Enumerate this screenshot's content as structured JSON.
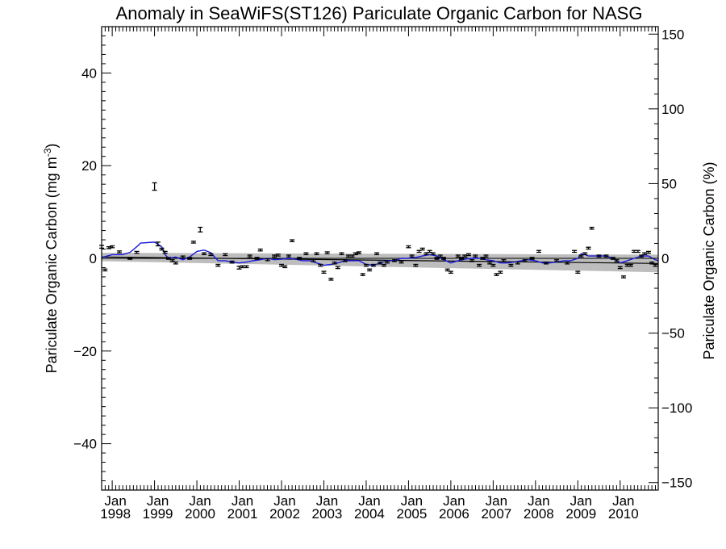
{
  "chart_data": {
    "type": "line",
    "title": "Anomaly in SeaWiFS(ST126) Pariculate Organic Carbon for NASG",
    "ylabel_left_main": "Pariculate Organic Carbon (mg m",
    "ylabel_left_sup": "-3",
    "ylabel_left_close": ")",
    "ylabel_right": "Pariculate Organic Carbon (%)",
    "xlim": [
      1997.75,
      2010.9
    ],
    "ylim_left": [
      -50,
      50
    ],
    "ylim_right": [
      -155,
      155
    ],
    "yticks_left": [
      {
        "value": -40,
        "label": "−40"
      },
      {
        "value": -20,
        "label": "−20"
      },
      {
        "value": 0,
        "label": "0"
      },
      {
        "value": 20,
        "label": "20"
      },
      {
        "value": 40,
        "label": "40"
      }
    ],
    "yticks_right": [
      {
        "value": -150,
        "label": "−150"
      },
      {
        "value": -100,
        "label": "−100"
      },
      {
        "value": -50,
        "label": "−50"
      },
      {
        "value": 0,
        "label": "0"
      },
      {
        "value": 50,
        "label": "50"
      },
      {
        "value": 100,
        "label": "100"
      },
      {
        "value": 150,
        "label": "150"
      }
    ],
    "xticks": [
      {
        "value": 1998.0,
        "month": "Jan",
        "year": "1998"
      },
      {
        "value": 1999.0,
        "month": "Jan",
        "year": "1999"
      },
      {
        "value": 2000.0,
        "month": "Jan",
        "year": "2000"
      },
      {
        "value": 2001.0,
        "month": "Jan",
        "year": "2001"
      },
      {
        "value": 2002.0,
        "month": "Jan",
        "year": "2002"
      },
      {
        "value": 2003.0,
        "month": "Jan",
        "year": "2003"
      },
      {
        "value": 2004.0,
        "month": "Jan",
        "year": "2004"
      },
      {
        "value": 2005.0,
        "month": "Jan",
        "year": "2005"
      },
      {
        "value": 2006.0,
        "month": "Jan",
        "year": "2006"
      },
      {
        "value": 2007.0,
        "month": "Jan",
        "year": "2007"
      },
      {
        "value": 2008.0,
        "month": "Jan",
        "year": "2008"
      },
      {
        "value": 2009.0,
        "month": "Jan",
        "year": "2009"
      },
      {
        "value": 2010.0,
        "month": "Jan",
        "year": "2010"
      }
    ],
    "trend_band": {
      "x": [
        1997.75,
        2010.9
      ],
      "upper": [
        1.2,
        0.8
      ],
      "lower": [
        -0.6,
        -3.0
      ]
    },
    "trend_line": {
      "x": [
        1997.75,
        2010.9
      ],
      "y": [
        0.3,
        -1.1
      ]
    },
    "monthly_anomalies": [
      {
        "x": 1997.75,
        "y": 2.5,
        "err": 0.3
      },
      {
        "x": 1997.83,
        "y": -2.5,
        "err": 0.2
      },
      {
        "x": 1997.92,
        "y": 2.3,
        "err": 0.2
      },
      {
        "x": 1998.0,
        "y": 2.5,
        "err": 0.2
      },
      {
        "x": 1998.17,
        "y": 1.4,
        "err": 0.2
      },
      {
        "x": 1998.42,
        "y": 0.0,
        "err": 0.2
      },
      {
        "x": 1998.58,
        "y": 1.3,
        "err": 0.2
      },
      {
        "x": 1999.0,
        "y": 15.5,
        "err": 0.8
      },
      {
        "x": 1999.08,
        "y": 3.1,
        "err": 0.4
      },
      {
        "x": 1999.17,
        "y": 2.0,
        "err": 0.2
      },
      {
        "x": 1999.25,
        "y": 1.3,
        "err": 0.2
      },
      {
        "x": 1999.33,
        "y": 0.0,
        "err": 0.2
      },
      {
        "x": 1999.42,
        "y": -0.5,
        "err": 0.2
      },
      {
        "x": 1999.5,
        "y": -1.0,
        "err": 0.2
      },
      {
        "x": 1999.67,
        "y": 0.3,
        "err": 0.2
      },
      {
        "x": 1999.83,
        "y": 0.0,
        "err": 0.2
      },
      {
        "x": 1999.92,
        "y": 3.5,
        "err": 0.2
      },
      {
        "x": 2000.08,
        "y": 6.2,
        "err": 0.5
      },
      {
        "x": 2000.17,
        "y": 1.0,
        "err": 0.2
      },
      {
        "x": 2000.33,
        "y": 0.8,
        "err": 0.2
      },
      {
        "x": 2000.5,
        "y": -1.5,
        "err": 0.2
      },
      {
        "x": 2000.67,
        "y": 0.8,
        "err": 0.2
      },
      {
        "x": 2000.83,
        "y": -0.8,
        "err": 0.2
      },
      {
        "x": 2001.0,
        "y": -2.0,
        "err": 0.3
      },
      {
        "x": 2001.08,
        "y": -1.8,
        "err": 0.2
      },
      {
        "x": 2001.17,
        "y": -1.8,
        "err": 0.2
      },
      {
        "x": 2001.25,
        "y": 0.5,
        "err": 0.2
      },
      {
        "x": 2001.42,
        "y": 0.0,
        "err": 0.2
      },
      {
        "x": 2001.5,
        "y": 1.8,
        "err": 0.2
      },
      {
        "x": 2001.67,
        "y": -0.3,
        "err": 0.2
      },
      {
        "x": 2001.83,
        "y": 0.5,
        "err": 0.2
      },
      {
        "x": 2001.92,
        "y": 0.7,
        "err": 0.2
      },
      {
        "x": 2002.0,
        "y": -1.5,
        "err": 0.2
      },
      {
        "x": 2002.08,
        "y": -1.8,
        "err": 0.2
      },
      {
        "x": 2002.17,
        "y": 0.5,
        "err": 0.2
      },
      {
        "x": 2002.25,
        "y": 3.8,
        "err": 0.2
      },
      {
        "x": 2002.42,
        "y": 0.0,
        "err": 0.2
      },
      {
        "x": 2002.58,
        "y": 1.0,
        "err": 0.2
      },
      {
        "x": 2002.75,
        "y": -0.5,
        "err": 0.2
      },
      {
        "x": 2002.83,
        "y": 1.0,
        "err": 0.2
      },
      {
        "x": 2002.92,
        "y": -1.5,
        "err": 0.2
      },
      {
        "x": 2003.0,
        "y": -3.0,
        "err": 0.2
      },
      {
        "x": 2003.08,
        "y": 1.2,
        "err": 0.2
      },
      {
        "x": 2003.17,
        "y": -4.5,
        "err": 0.2
      },
      {
        "x": 2003.25,
        "y": -1.0,
        "err": 0.2
      },
      {
        "x": 2003.33,
        "y": -2.0,
        "err": 0.2
      },
      {
        "x": 2003.42,
        "y": 1.0,
        "err": 0.2
      },
      {
        "x": 2003.5,
        "y": -0.5,
        "err": 0.2
      },
      {
        "x": 2003.58,
        "y": 0.5,
        "err": 0.2
      },
      {
        "x": 2003.67,
        "y": 0.5,
        "err": 0.2
      },
      {
        "x": 2003.75,
        "y": 1.0,
        "err": 0.2
      },
      {
        "x": 2003.83,
        "y": 1.2,
        "err": 0.2
      },
      {
        "x": 2003.92,
        "y": -3.5,
        "err": 0.2
      },
      {
        "x": 2004.0,
        "y": -1.5,
        "err": 0.2
      },
      {
        "x": 2004.08,
        "y": -2.5,
        "err": 0.2
      },
      {
        "x": 2004.17,
        "y": -1.5,
        "err": 0.2
      },
      {
        "x": 2004.25,
        "y": 1.0,
        "err": 0.2
      },
      {
        "x": 2004.33,
        "y": -1.0,
        "err": 0.2
      },
      {
        "x": 2004.42,
        "y": -1.5,
        "err": 0.2
      },
      {
        "x": 2004.5,
        "y": -0.8,
        "err": 0.2
      },
      {
        "x": 2004.67,
        "y": -0.5,
        "err": 0.2
      },
      {
        "x": 2004.83,
        "y": -0.8,
        "err": 0.2
      },
      {
        "x": 2005.0,
        "y": 2.5,
        "err": 0.2
      },
      {
        "x": 2005.08,
        "y": 0.5,
        "err": 0.2
      },
      {
        "x": 2005.17,
        "y": -1.5,
        "err": 0.2
      },
      {
        "x": 2005.25,
        "y": 1.5,
        "err": 0.2
      },
      {
        "x": 2005.33,
        "y": 2.0,
        "err": 0.2
      },
      {
        "x": 2005.42,
        "y": 1.0,
        "err": 0.2
      },
      {
        "x": 2005.5,
        "y": 1.5,
        "err": 0.2
      },
      {
        "x": 2005.58,
        "y": 1.0,
        "err": 0.2
      },
      {
        "x": 2005.67,
        "y": 0.0,
        "err": 0.2
      },
      {
        "x": 2005.75,
        "y": 0.5,
        "err": 0.2
      },
      {
        "x": 2005.83,
        "y": 0.0,
        "err": 0.2
      },
      {
        "x": 2005.92,
        "y": -2.5,
        "err": 0.2
      },
      {
        "x": 2006.0,
        "y": -3.0,
        "err": 0.2
      },
      {
        "x": 2006.17,
        "y": 0.5,
        "err": 0.2
      },
      {
        "x": 2006.25,
        "y": 0.0,
        "err": 0.2
      },
      {
        "x": 2006.33,
        "y": 0.5,
        "err": 0.2
      },
      {
        "x": 2006.42,
        "y": 0.8,
        "err": 0.2
      },
      {
        "x": 2006.5,
        "y": -0.5,
        "err": 0.2
      },
      {
        "x": 2006.58,
        "y": 0.5,
        "err": 0.2
      },
      {
        "x": 2006.67,
        "y": -1.5,
        "err": 0.2
      },
      {
        "x": 2006.75,
        "y": 0.0,
        "err": 0.2
      },
      {
        "x": 2006.83,
        "y": 0.5,
        "err": 0.2
      },
      {
        "x": 2006.92,
        "y": -1.0,
        "err": 0.2
      },
      {
        "x": 2007.0,
        "y": -1.5,
        "err": 0.2
      },
      {
        "x": 2007.08,
        "y": -3.5,
        "err": 0.2
      },
      {
        "x": 2007.17,
        "y": -3.0,
        "err": 0.2
      },
      {
        "x": 2007.25,
        "y": -0.5,
        "err": 0.2
      },
      {
        "x": 2007.42,
        "y": -1.5,
        "err": 0.2
      },
      {
        "x": 2007.58,
        "y": -1.0,
        "err": 0.2
      },
      {
        "x": 2007.75,
        "y": -0.5,
        "err": 0.2
      },
      {
        "x": 2007.92,
        "y": 0.0,
        "err": 0.2
      },
      {
        "x": 2008.08,
        "y": 1.5,
        "err": 0.2
      },
      {
        "x": 2008.25,
        "y": -1.0,
        "err": 0.2
      },
      {
        "x": 2008.5,
        "y": -0.5,
        "err": 0.2
      },
      {
        "x": 2008.75,
        "y": -1.0,
        "err": 0.2
      },
      {
        "x": 2008.92,
        "y": 1.5,
        "err": 0.2
      },
      {
        "x": 2009.0,
        "y": -3.0,
        "err": 0.2
      },
      {
        "x": 2009.08,
        "y": 0.5,
        "err": 0.2
      },
      {
        "x": 2009.17,
        "y": 1.0,
        "err": 0.2
      },
      {
        "x": 2009.25,
        "y": 2.2,
        "err": 0.2
      },
      {
        "x": 2009.33,
        "y": 6.5,
        "err": 0.2
      },
      {
        "x": 2009.5,
        "y": 0.5,
        "err": 0.2
      },
      {
        "x": 2009.67,
        "y": 0.5,
        "err": 0.2
      },
      {
        "x": 2009.83,
        "y": 0.0,
        "err": 0.2
      },
      {
        "x": 2009.92,
        "y": -0.5,
        "err": 0.2
      },
      {
        "x": 2010.0,
        "y": -2.0,
        "err": 0.2
      },
      {
        "x": 2010.08,
        "y": -4.0,
        "err": 0.2
      },
      {
        "x": 2010.17,
        "y": -1.5,
        "err": 0.2
      },
      {
        "x": 2010.25,
        "y": -1.5,
        "err": 0.2
      },
      {
        "x": 2010.33,
        "y": 1.5,
        "err": 0.2
      },
      {
        "x": 2010.42,
        "y": 1.5,
        "err": 0.2
      },
      {
        "x": 2010.5,
        "y": 0.5,
        "err": 0.2
      },
      {
        "x": 2010.58,
        "y": 1.0,
        "err": 0.2
      },
      {
        "x": 2010.67,
        "y": 1.3,
        "err": 0.2
      },
      {
        "x": 2010.75,
        "y": -1.0,
        "err": 0.2
      },
      {
        "x": 2010.83,
        "y": -1.5,
        "err": 0.2
      }
    ],
    "smoothed_series": {
      "color": "#1a1adc",
      "x": [
        1997.75,
        1998.0,
        1998.25,
        1998.42,
        1998.58,
        1998.67,
        1999.0,
        1999.17,
        1999.25,
        1999.33,
        1999.5,
        1999.67,
        1999.83,
        2000.0,
        2000.17,
        2000.33,
        2000.5,
        2000.67,
        2000.83,
        2001.0,
        2001.17,
        2001.33,
        2001.5,
        2001.67,
        2001.83,
        2002.0,
        2002.17,
        2002.33,
        2002.5,
        2002.67,
        2002.83,
        2003.0,
        2003.17,
        2003.33,
        2003.5,
        2003.67,
        2003.83,
        2004.0,
        2004.17,
        2004.33,
        2004.5,
        2004.67,
        2004.83,
        2005.0,
        2005.17,
        2005.33,
        2005.5,
        2005.67,
        2005.83,
        2006.0,
        2006.17,
        2006.33,
        2006.5,
        2006.67,
        2006.83,
        2007.0,
        2007.17,
        2007.33,
        2007.5,
        2007.67,
        2007.83,
        2008.0,
        2008.17,
        2008.33,
        2008.5,
        2008.67,
        2008.83,
        2009.0,
        2009.08,
        2009.17,
        2009.25,
        2009.33,
        2009.5,
        2009.67,
        2009.83,
        2010.0,
        2010.17,
        2010.33,
        2010.5,
        2010.67,
        2010.83,
        2010.9
      ],
      "y": [
        0.2,
        0.8,
        0.8,
        1.3,
        2.5,
        3.3,
        3.5,
        2.5,
        0.8,
        0.0,
        0.3,
        -0.3,
        0.3,
        1.5,
        1.8,
        1.2,
        -0.5,
        -0.5,
        -0.8,
        -1.0,
        -0.8,
        -0.5,
        -0.3,
        0.0,
        -0.3,
        -0.2,
        0.0,
        -0.2,
        -0.5,
        -0.5,
        -1.0,
        -1.5,
        -1.3,
        -1.0,
        -0.5,
        -0.5,
        -0.5,
        -1.3,
        -1.5,
        -1.0,
        -0.5,
        -0.5,
        0.0,
        0.0,
        0.2,
        0.5,
        0.8,
        0.5,
        -0.3,
        -1.0,
        -0.5,
        -0.2,
        0.0,
        0.0,
        -0.3,
        -0.5,
        -1.0,
        -1.0,
        -0.8,
        -0.5,
        -0.3,
        -0.5,
        -1.0,
        -1.0,
        -0.8,
        -0.5,
        -0.5,
        0.0,
        1.0,
        0.8,
        0.5,
        0.5,
        0.5,
        0.5,
        0.0,
        -1.0,
        -0.5,
        0.0,
        0.5,
        0.5,
        -0.3,
        -0.5
      ]
    }
  }
}
